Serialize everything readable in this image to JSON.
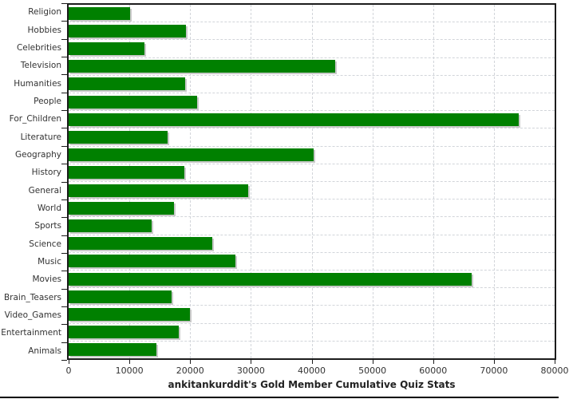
{
  "title": "ankitankurddit's Gold Member Cumulative Quiz Stats",
  "chart_data": {
    "type": "bar",
    "orientation": "horizontal",
    "title": "ankitankurddit's Gold Member Cumulative Quiz Stats",
    "xlabel": "",
    "ylabel": "",
    "xlim": [
      0,
      80000
    ],
    "x_ticks": [
      0,
      10000,
      20000,
      30000,
      40000,
      50000,
      60000,
      70000,
      80000
    ],
    "grid": true,
    "grid_style": "dashed",
    "legend_position": "none",
    "bar_color": "#008000",
    "bar_shadow_color": "#c9c9c9",
    "categories": [
      "Religion",
      "Hobbies",
      "Celebrities",
      "Television",
      "Humanities",
      "People",
      "For_Children",
      "Literature",
      "Geography",
      "History",
      "General",
      "World",
      "Sports",
      "Science",
      "Music",
      "Movies",
      "Brain_Teasers",
      "Video_Games",
      "Entertainment",
      "Animals"
    ],
    "values": [
      10100,
      19300,
      12500,
      43900,
      19200,
      21200,
      74100,
      16300,
      40300,
      19000,
      29600,
      17400,
      13700,
      23600,
      27400,
      66300,
      17000,
      20000,
      18100,
      14400
    ]
  }
}
